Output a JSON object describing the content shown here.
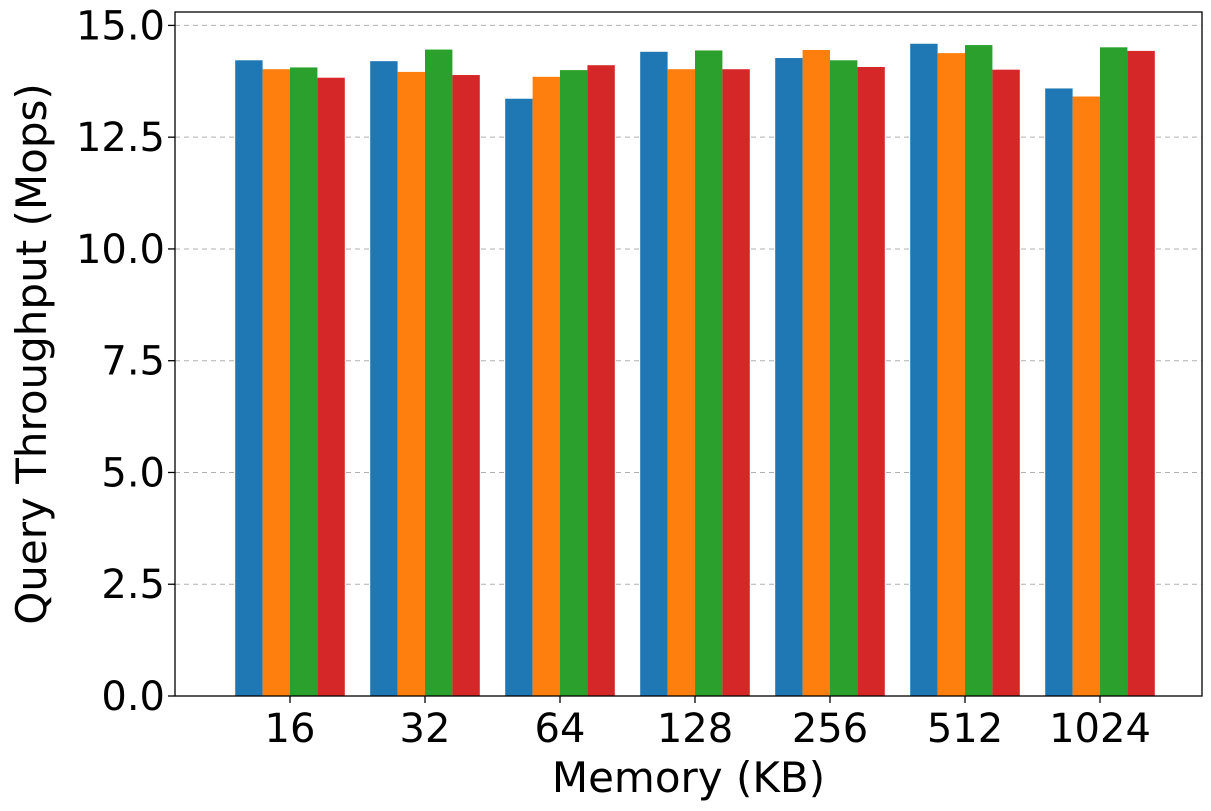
{
  "chart_data": {
    "type": "bar",
    "title": "",
    "xlabel": "Memory (KB)",
    "ylabel": "Query Throughput (Mops)",
    "categories": [
      "16",
      "32",
      "64",
      "128",
      "256",
      "512",
      "1024"
    ],
    "ylim": [
      0,
      15.3
    ],
    "yticks": [
      "0.0",
      "2.5",
      "5.0",
      "7.5",
      "10.0",
      "12.5",
      "15.0"
    ],
    "grid": "y-dashed",
    "legend": "none",
    "series": [
      {
        "color": "#1f77b4",
        "values": [
          14.22,
          14.2,
          13.36,
          14.41,
          14.27,
          14.59,
          13.59
        ]
      },
      {
        "color": "#ff7f0e",
        "values": [
          14.02,
          13.96,
          13.85,
          14.02,
          14.45,
          14.38,
          13.41
        ]
      },
      {
        "color": "#2ca02c",
        "values": [
          14.06,
          14.46,
          14.0,
          14.44,
          14.22,
          14.56,
          14.51
        ]
      },
      {
        "color": "#d62728",
        "values": [
          13.83,
          13.89,
          14.11,
          14.02,
          14.07,
          14.01,
          14.43
        ]
      }
    ]
  }
}
